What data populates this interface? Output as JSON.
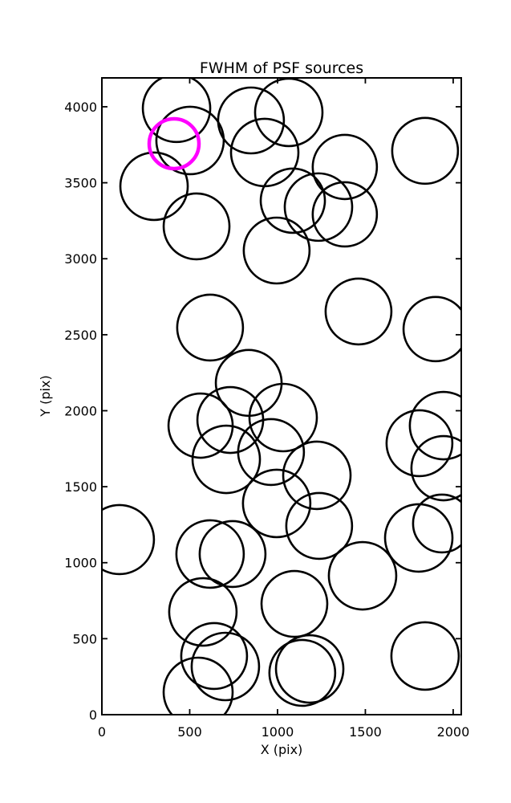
{
  "title": "FWHM of PSF sources",
  "chart_data": {
    "type": "scatter",
    "title": "FWHM of PSF sources",
    "xlabel": "X (pix)",
    "ylabel": "Y (pix)",
    "xlim": [
      0,
      2046
    ],
    "ylim": [
      0,
      4190
    ],
    "x_ticks": [
      0,
      500,
      1000,
      1500,
      2000
    ],
    "y_ticks": [
      0,
      500,
      1000,
      1500,
      2000,
      2500,
      3000,
      3500,
      4000
    ],
    "grid": false,
    "legend": "none",
    "marker_style": "open-circle",
    "marker_color": "#000000",
    "marker_linewidth": 2.6,
    "highlight_color": "#ff00ff",
    "highlight_linewidth": 4.5,
    "sources": [
      {
        "x": 425,
        "y": 3990,
        "r": 42
      },
      {
        "x": 502,
        "y": 3778,
        "r": 42
      },
      {
        "x": 297,
        "y": 3477,
        "r": 42
      },
      {
        "x": 539,
        "y": 3213,
        "r": 41
      },
      {
        "x": 849,
        "y": 3910,
        "r": 41
      },
      {
        "x": 1064,
        "y": 3963,
        "r": 42
      },
      {
        "x": 927,
        "y": 3699,
        "r": 42
      },
      {
        "x": 1383,
        "y": 3604,
        "r": 40
      },
      {
        "x": 1840,
        "y": 3710,
        "r": 41
      },
      {
        "x": 1087,
        "y": 3382,
        "r": 40
      },
      {
        "x": 1233,
        "y": 3340,
        "r": 42
      },
      {
        "x": 1383,
        "y": 3292,
        "r": 40
      },
      {
        "x": 995,
        "y": 3054,
        "r": 41
      },
      {
        "x": 616,
        "y": 2547,
        "r": 41
      },
      {
        "x": 1461,
        "y": 2653,
        "r": 41
      },
      {
        "x": 1900,
        "y": 2537,
        "r": 40
      },
      {
        "x": 836,
        "y": 2183,
        "r": 41
      },
      {
        "x": 731,
        "y": 1939,
        "r": 41
      },
      {
        "x": 1032,
        "y": 1955,
        "r": 42
      },
      {
        "x": 562,
        "y": 1902,
        "r": 40
      },
      {
        "x": 708,
        "y": 1680,
        "r": 42
      },
      {
        "x": 963,
        "y": 1728,
        "r": 41
      },
      {
        "x": 1224,
        "y": 1575,
        "r": 42
      },
      {
        "x": 1945,
        "y": 1902,
        "r": 42
      },
      {
        "x": 1808,
        "y": 1786,
        "r": 41
      },
      {
        "x": 1945,
        "y": 1622,
        "r": 40
      },
      {
        "x": 995,
        "y": 1390,
        "r": 42
      },
      {
        "x": 1237,
        "y": 1242,
        "r": 41
      },
      {
        "x": 1936,
        "y": 1258,
        "r": 36
      },
      {
        "x": 1804,
        "y": 1163,
        "r": 42
      },
      {
        "x": 100,
        "y": 1152,
        "r": 43
      },
      {
        "x": 616,
        "y": 1057,
        "r": 42
      },
      {
        "x": 744,
        "y": 1057,
        "r": 41
      },
      {
        "x": 1484,
        "y": 914,
        "r": 42
      },
      {
        "x": 1096,
        "y": 729,
        "r": 41
      },
      {
        "x": 575,
        "y": 676,
        "r": 42
      },
      {
        "x": 639,
        "y": 386,
        "r": 41
      },
      {
        "x": 703,
        "y": 317,
        "r": 42
      },
      {
        "x": 548,
        "y": 148,
        "r": 43
      },
      {
        "x": 1141,
        "y": 275,
        "r": 41
      },
      {
        "x": 1183,
        "y": 301,
        "r": 42
      },
      {
        "x": 1840,
        "y": 386,
        "r": 42
      }
    ],
    "highlighted_source": {
      "x": 411,
      "y": 3757,
      "r": 31
    }
  }
}
